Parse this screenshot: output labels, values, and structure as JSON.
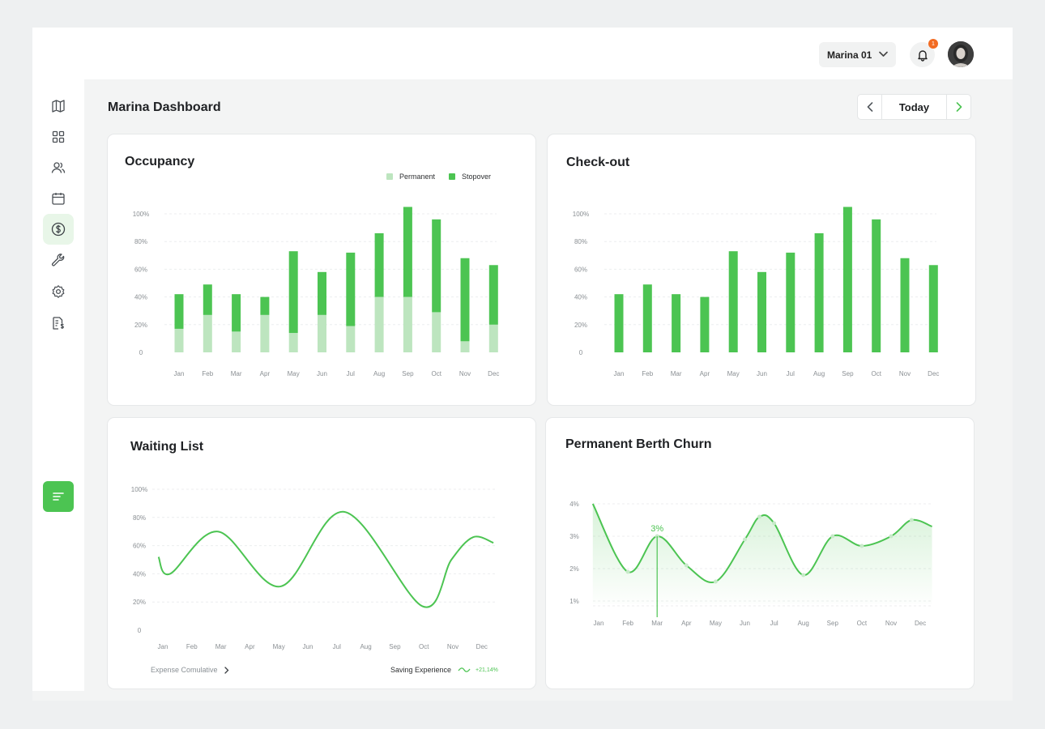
{
  "header": {
    "marina_select": "Marina 01",
    "notification_count": "1"
  },
  "page": {
    "title": "Marina Dashboard",
    "date_label": "Today"
  },
  "sidebar": {
    "items": [
      {
        "icon": "map-icon"
      },
      {
        "icon": "grid-icon"
      },
      {
        "icon": "users-icon"
      },
      {
        "icon": "calendar-icon"
      },
      {
        "icon": "dollar-icon",
        "active": true
      },
      {
        "icon": "wrench-icon"
      },
      {
        "icon": "settings-icon"
      },
      {
        "icon": "invoice-icon"
      }
    ],
    "action_icon": "menu-lines-icon"
  },
  "colors": {
    "accent": "#4cc452",
    "light": "#bde5bf",
    "grid": "#eceeef"
  },
  "occupancy": {
    "title": "Occupancy",
    "legend": [
      "Permanent",
      "Stopover"
    ]
  },
  "checkout": {
    "title": "Check-out"
  },
  "waiting": {
    "title": "Waiting List",
    "footer_left": "Expense Comulative",
    "footer_right": "Saving Experience",
    "footer_pct": "+21,14%"
  },
  "churn": {
    "title": "Permanent Berth Churn",
    "marker_label": "3%"
  },
  "chart_data": [
    {
      "type": "bar",
      "title": "Occupancy",
      "categories": [
        "Jan",
        "Feb",
        "Mar",
        "Apr",
        "May",
        "Jun",
        "Jul",
        "Aug",
        "Sep",
        "Oct",
        "Nov",
        "Dec"
      ],
      "y_ticks": [
        "100%",
        "80%",
        "60%",
        "40%",
        "20%",
        "0"
      ],
      "ylim": [
        0,
        100
      ],
      "stacked": true,
      "series": [
        {
          "name": "Permanent",
          "values": [
            17,
            27,
            15,
            27,
            14,
            27,
            19,
            40,
            40,
            29,
            8,
            20
          ]
        },
        {
          "name": "Stopover",
          "values": [
            25,
            22,
            27,
            13,
            59,
            31,
            53,
            46,
            65,
            67,
            60,
            43
          ]
        }
      ],
      "legend": "top-right",
      "grid": true
    },
    {
      "type": "bar",
      "title": "Check-out",
      "categories": [
        "Jan",
        "Feb",
        "Mar",
        "Apr",
        "May",
        "Jun",
        "Jul",
        "Aug",
        "Sep",
        "Oct",
        "Nov",
        "Dec"
      ],
      "y_ticks": [
        "100%",
        "80%",
        "60%",
        "40%",
        "20%",
        "0"
      ],
      "ylim": [
        0,
        100
      ],
      "values": [
        42,
        49,
        42,
        40,
        73,
        58,
        72,
        86,
        105,
        96,
        68,
        63
      ],
      "grid": true
    },
    {
      "type": "line",
      "title": "Waiting List",
      "categories": [
        "Jan",
        "Feb",
        "Mar",
        "Apr",
        "May",
        "Jun",
        "Jul",
        "Aug",
        "Sep",
        "Oct",
        "Nov",
        "Dec"
      ],
      "y_ticks": [
        "100%",
        "80%",
        "60%",
        "40%",
        "20%",
        "0"
      ],
      "ylim": [
        0,
        100
      ],
      "x": [
        0,
        0.2,
        2,
        4,
        6,
        6.7,
        11.4
      ],
      "values": [
        52,
        40,
        70,
        30,
        84,
        17,
        62
      ],
      "curve_points": [
        [
          -0.15,
          52
        ],
        [
          0.25,
          40
        ],
        [
          1.9,
          70
        ],
        [
          4.05,
          31
        ],
        [
          6.25,
          84
        ],
        [
          8.95,
          17
        ],
        [
          9.95,
          50
        ],
        [
          10.7,
          66
        ],
        [
          11.4,
          62
        ]
      ],
      "grid": true
    },
    {
      "type": "area",
      "title": "Permanent Berth Churn",
      "categories": [
        "Jan",
        "Feb",
        "Mar",
        "Apr",
        "May",
        "Jun",
        "Jul",
        "Aug",
        "Sep",
        "Oct",
        "Nov",
        "Dec"
      ],
      "y_ticks": [
        "4%",
        "3%",
        "2%",
        "1%"
      ],
      "ylim": [
        0.5,
        4
      ],
      "x": [
        -0.2,
        1,
        2,
        3,
        4,
        5,
        5.5,
        6,
        7,
        8,
        9,
        10,
        10.7,
        11.4
      ],
      "values": [
        4.0,
        1.9,
        3.0,
        2.1,
        1.6,
        2.9,
        3.6,
        3.4,
        1.8,
        3.0,
        2.7,
        3.0,
        3.5,
        3.3
      ],
      "annotation": {
        "category": "Mar",
        "label": "3%"
      },
      "grid": true
    }
  ]
}
